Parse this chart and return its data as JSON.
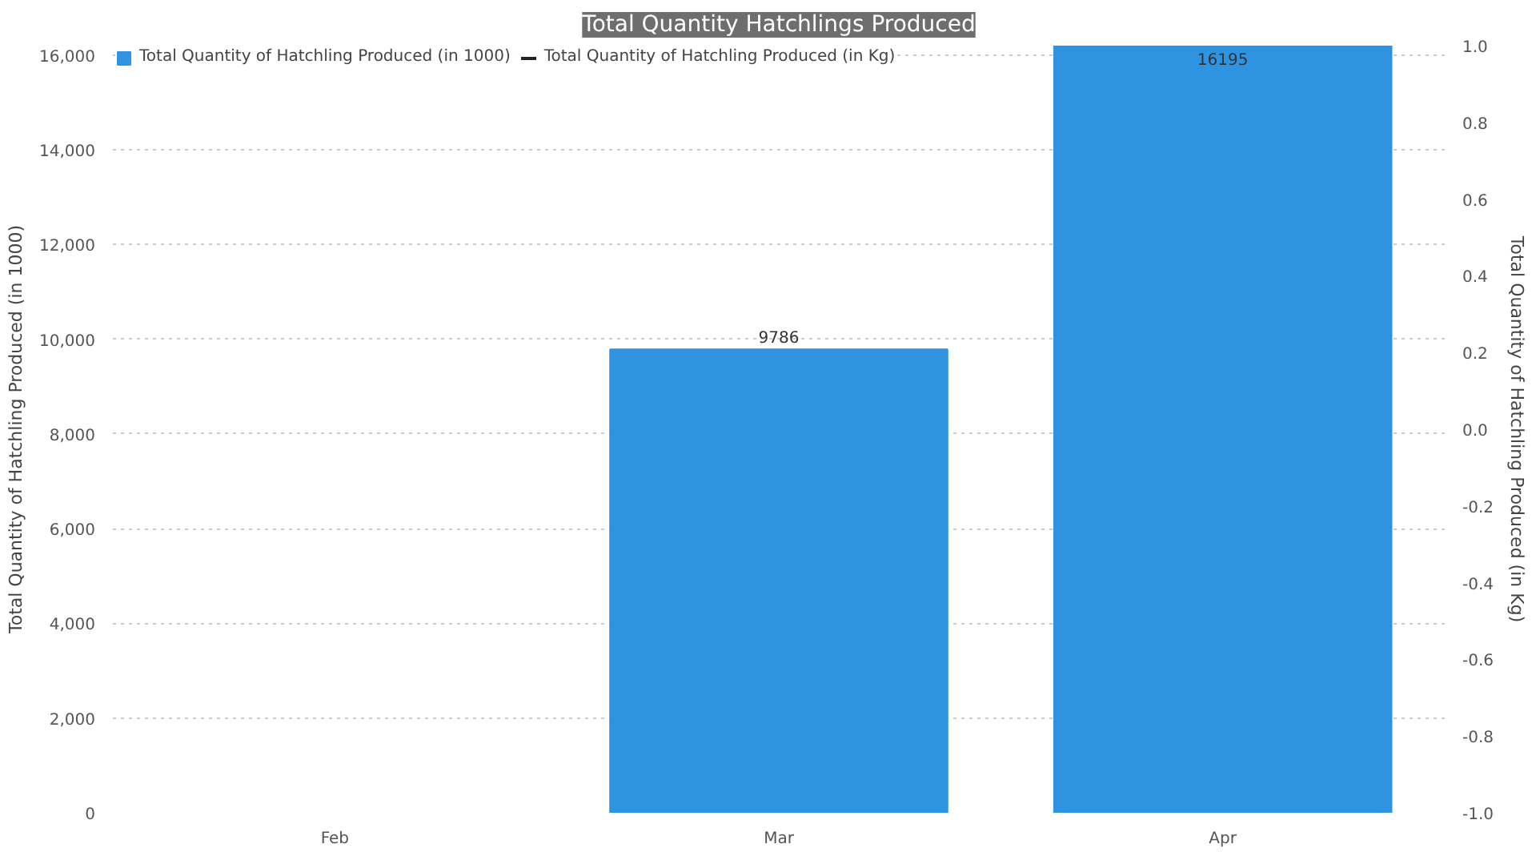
{
  "chart_data": {
    "type": "bar",
    "title": "Total Quantity Hatchlings Produced",
    "categories": [
      "Feb",
      "Mar",
      "Apr"
    ],
    "series": [
      {
        "name": "Total Quantity of Hatchling Produced (in 1000)",
        "color": "#2e93e0",
        "values": [
          null,
          9786,
          16195
        ]
      },
      {
        "name": "Total Quantity of Hatchling Produced (in Kg)",
        "color": "#222222",
        "type": "line",
        "axis": "y2",
        "values": [
          null,
          null,
          null
        ]
      }
    ],
    "ylabel": "Total Quantity of Hatchling Produced (in 1000)",
    "y2label": "Total Quantity of Hatchling Produced (in Kg)",
    "ylim": [
      0,
      16200
    ],
    "yticks": [
      {
        "value": 0,
        "label": "0"
      },
      {
        "value": 2000,
        "label": "2,000"
      },
      {
        "value": 4000,
        "label": "4,000"
      },
      {
        "value": 6000,
        "label": "6,000"
      },
      {
        "value": 8000,
        "label": "8,000"
      },
      {
        "value": 10000,
        "label": "10,000"
      },
      {
        "value": 12000,
        "label": "12,000"
      },
      {
        "value": 14000,
        "label": "14,000"
      },
      {
        "value": 16000,
        "label": "16,000"
      }
    ],
    "y2lim": [
      -1,
      1
    ],
    "y2ticks": [
      {
        "value": -1,
        "label": "-1.0"
      },
      {
        "value": -0.8,
        "label": "-0.8"
      },
      {
        "value": -0.6,
        "label": "-0.6"
      },
      {
        "value": -0.4,
        "label": "-0.4"
      },
      {
        "value": -0.2,
        "label": "-0.2"
      },
      {
        "value": 0,
        "label": "0.0"
      },
      {
        "value": 0.2,
        "label": "0.2"
      },
      {
        "value": 0.4,
        "label": "0.4"
      },
      {
        "value": 0.6,
        "label": "0.6"
      },
      {
        "value": 0.8,
        "label": "0.8"
      },
      {
        "value": 1,
        "label": "1.0"
      }
    ],
    "grid": "y",
    "legend": "top left",
    "data_labels": true
  }
}
